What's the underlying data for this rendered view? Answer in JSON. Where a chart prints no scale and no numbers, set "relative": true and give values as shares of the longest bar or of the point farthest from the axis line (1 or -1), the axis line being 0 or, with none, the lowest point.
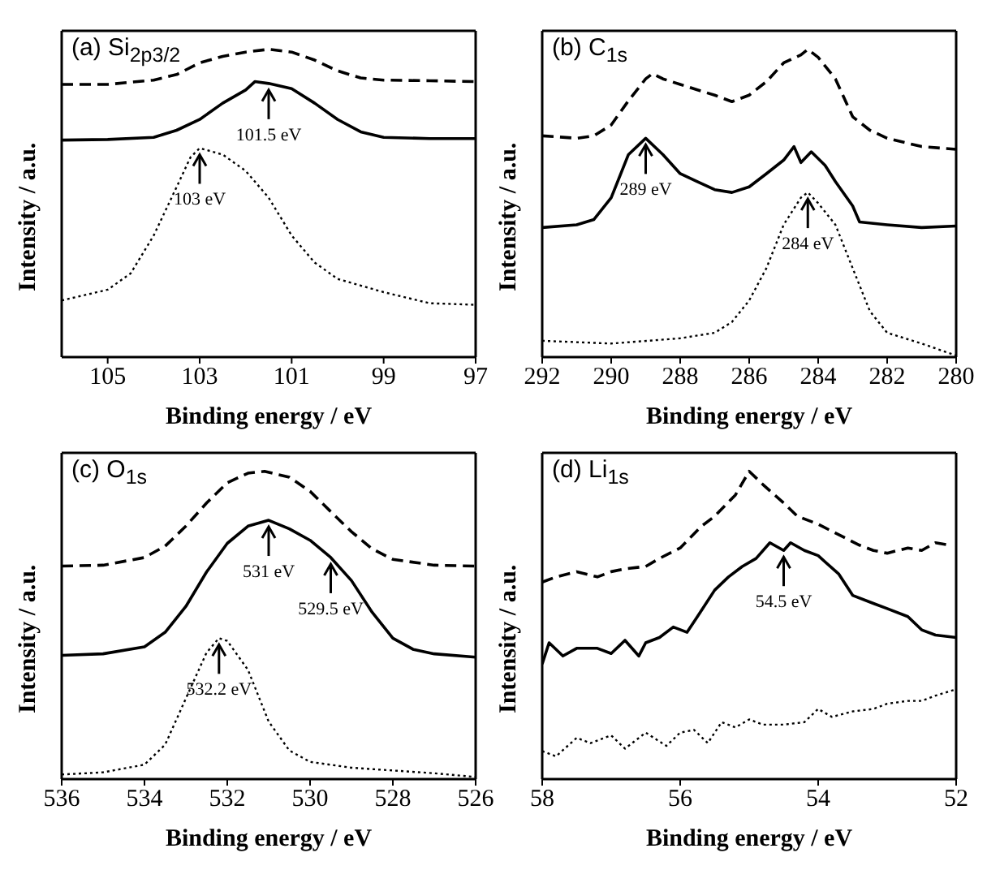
{
  "chart_data": [
    {
      "type": "line",
      "title": "(a) Si$_{2p3/2}$",
      "xlabel": "Binding energy / eV",
      "ylabel": "Intensity / a.u.",
      "relative": true,
      "xlim": [
        106,
        97
      ],
      "xticks": [
        105,
        103,
        101,
        99,
        97
      ],
      "series": [
        {
          "color": "#000000",
          "line_style": "dashed",
          "x": [
            106,
            105,
            104,
            103.5,
            103,
            102.5,
            102,
            101.5,
            101,
            100.5,
            100,
            99.5,
            99,
            98,
            97
          ],
          "values": [
            0.886,
            0.886,
            0.9,
            0.918,
            0.956,
            0.977,
            0.991,
            1,
            0.991,
            0.965,
            0.93,
            0.907,
            0.9,
            0.898,
            0.895
          ]
        },
        {
          "color": "#000000",
          "line_style": "solid",
          "x": [
            106,
            105,
            104,
            103.5,
            103,
            102.5,
            102,
            101.8,
            101.5,
            101,
            100.5,
            100,
            99.5,
            99,
            98,
            97
          ],
          "values": [
            0.705,
            0.707,
            0.714,
            0.737,
            0.772,
            0.825,
            0.868,
            0.895,
            0.889,
            0.872,
            0.825,
            0.772,
            0.732,
            0.714,
            0.71,
            0.71
          ]
        },
        {
          "color": "#000000",
          "line_style": "dotted",
          "x": [
            106,
            105,
            104.5,
            104,
            103.5,
            103.2,
            103,
            102.5,
            102,
            101.5,
            101,
            100.5,
            100,
            99,
            98,
            97
          ],
          "values": [
            0.184,
            0.219,
            0.272,
            0.395,
            0.553,
            0.649,
            0.679,
            0.658,
            0.605,
            0.518,
            0.395,
            0.307,
            0.254,
            0.211,
            0.175,
            0.17
          ]
        }
      ],
      "annotations": [
        {
          "text": "101.5 eV",
          "x": 101.5,
          "y": 0.889
        },
        {
          "text": "103 eV",
          "x": 103,
          "y": 0.679
        }
      ]
    },
    {
      "type": "line",
      "title": "(b) C$_{1s}$",
      "xlabel": "Binding energy / eV",
      "ylabel": "Intensity / a.u.",
      "relative": true,
      "xlim": [
        292,
        280
      ],
      "xticks": [
        292,
        290,
        288,
        286,
        284,
        282,
        280
      ],
      "series": [
        {
          "color": "#000000",
          "line_style": "dashed",
          "x": [
            292,
            291,
            290.5,
            290,
            289.5,
            289,
            288.8,
            288.5,
            288,
            287.5,
            287,
            286.5,
            286,
            285.5,
            285,
            284.5,
            284.3,
            284,
            283.5,
            283,
            282.5,
            282,
            281,
            280
          ],
          "values": [
            0.719,
            0.711,
            0.719,
            0.754,
            0.833,
            0.904,
            0.921,
            0.904,
            0.886,
            0.868,
            0.851,
            0.83,
            0.851,
            0.895,
            0.956,
            0.982,
            1,
            0.974,
            0.904,
            0.781,
            0.737,
            0.711,
            0.684,
            0.675
          ]
        },
        {
          "color": "#000000",
          "line_style": "solid",
          "x": [
            292,
            291,
            290.5,
            290,
            289.5,
            289,
            288.5,
            288,
            287.5,
            287,
            286.5,
            286,
            285.5,
            285,
            284.7,
            284.5,
            284.2,
            283.8,
            283.5,
            283,
            282.8,
            282,
            281,
            280
          ],
          "values": [
            0.421,
            0.43,
            0.447,
            0.518,
            0.658,
            0.711,
            0.658,
            0.596,
            0.57,
            0.544,
            0.535,
            0.553,
            0.596,
            0.64,
            0.684,
            0.632,
            0.667,
            0.623,
            0.57,
            0.491,
            0.439,
            0.43,
            0.421,
            0.426
          ]
        },
        {
          "color": "#000000",
          "line_style": "dotted",
          "x": [
            292,
            290,
            288,
            287,
            286.5,
            286,
            285.5,
            285,
            284.5,
            284.3,
            284,
            283.5,
            283,
            282.5,
            282,
            281,
            280
          ],
          "values": [
            0.053,
            0.044,
            0.061,
            0.079,
            0.114,
            0.184,
            0.289,
            0.43,
            0.518,
            0.535,
            0.5,
            0.43,
            0.289,
            0.149,
            0.079,
            0.044,
            0.005
          ]
        }
      ],
      "annotations": [
        {
          "text": "289 eV",
          "x": 289,
          "y": 0.711
        },
        {
          "text": "284 eV",
          "x": 284.3,
          "y": 0.535
        }
      ]
    },
    {
      "type": "line",
      "title": "(c) O$_{1s}$",
      "xlabel": "Binding energy / eV",
      "ylabel": "Intensity / a.u.",
      "relative": true,
      "xlim": [
        536,
        526
      ],
      "xticks": [
        536,
        534,
        532,
        530,
        528,
        526
      ],
      "series": [
        {
          "color": "#000000",
          "line_style": "dashed",
          "x": [
            536,
            535,
            534,
            533.5,
            533,
            532.5,
            532,
            531.5,
            531.1,
            530.5,
            530,
            529.5,
            529,
            528.5,
            528,
            527,
            526
          ],
          "values": [
            0.692,
            0.695,
            0.72,
            0.757,
            0.822,
            0.897,
            0.963,
            0.994,
            1,
            0.981,
            0.935,
            0.869,
            0.804,
            0.748,
            0.714,
            0.695,
            0.692
          ]
        },
        {
          "color": "#000000",
          "line_style": "solid",
          "x": [
            536,
            535,
            534,
            533.5,
            533,
            532.5,
            532,
            531.5,
            531,
            530.5,
            530,
            529.5,
            529,
            528.5,
            528,
            527.5,
            527,
            526
          ],
          "values": [
            0.402,
            0.407,
            0.43,
            0.477,
            0.561,
            0.673,
            0.766,
            0.822,
            0.841,
            0.813,
            0.776,
            0.72,
            0.645,
            0.542,
            0.458,
            0.421,
            0.407,
            0.396
          ]
        },
        {
          "color": "#000000",
          "line_style": "dotted",
          "x": [
            536,
            535,
            534,
            533.5,
            533,
            532.5,
            532.2,
            532,
            531.5,
            531,
            530.5,
            530,
            529,
            528,
            527,
            526
          ],
          "values": [
            0.015,
            0.022,
            0.047,
            0.112,
            0.262,
            0.411,
            0.458,
            0.449,
            0.355,
            0.187,
            0.093,
            0.056,
            0.037,
            0.028,
            0.019,
            0.007
          ]
        }
      ],
      "annotations": [
        {
          "text": "531 eV",
          "x": 531,
          "y": 0.841
        },
        {
          "text": "529.5 eV",
          "x": 529.5,
          "y": 0.72
        },
        {
          "text": "532.2 eV",
          "x": 532.2,
          "y": 0.458
        }
      ]
    },
    {
      "type": "line",
      "title": "(d) Li$_{1s}$",
      "xlabel": "Binding energy / eV",
      "ylabel": "Intensity / a.u.",
      "relative": true,
      "xlim": [
        58,
        52
      ],
      "xticks": [
        58,
        56,
        54,
        52
      ],
      "series": [
        {
          "color": "#000000",
          "line_style": "dashed",
          "x": [
            58,
            57.8,
            57.5,
            57.2,
            57,
            56.8,
            56.5,
            56.3,
            56,
            55.7,
            55.5,
            55.2,
            55,
            54.8,
            54.5,
            54.3,
            54,
            53.7,
            53.4,
            53.2,
            53,
            52.7,
            52.5,
            52.3,
            52.1
          ],
          "values": [
            0.64,
            0.657,
            0.674,
            0.657,
            0.674,
            0.683,
            0.691,
            0.717,
            0.751,
            0.82,
            0.854,
            0.923,
            1,
            0.957,
            0.897,
            0.854,
            0.828,
            0.794,
            0.76,
            0.743,
            0.734,
            0.751,
            0.743,
            0.768,
            0.76
          ]
        },
        {
          "color": "#000000",
          "line_style": "solid",
          "x": [
            58,
            57.9,
            57.7,
            57.5,
            57.2,
            57,
            56.8,
            56.6,
            56.5,
            56.3,
            56.1,
            55.9,
            55.7,
            55.5,
            55.3,
            55.1,
            54.9,
            54.7,
            54.5,
            54.4,
            54.2,
            54,
            53.7,
            53.5,
            53.2,
            53,
            52.7,
            52.5,
            52.3,
            52
          ],
          "values": [
            0.374,
            0.443,
            0.4,
            0.425,
            0.425,
            0.408,
            0.451,
            0.4,
            0.443,
            0.46,
            0.494,
            0.477,
            0.545,
            0.614,
            0.657,
            0.691,
            0.717,
            0.768,
            0.743,
            0.768,
            0.743,
            0.726,
            0.666,
            0.597,
            0.571,
            0.554,
            0.528,
            0.485,
            0.468,
            0.46
          ]
        },
        {
          "color": "#000000",
          "line_style": "dotted",
          "x": [
            58,
            57.8,
            57.5,
            57.3,
            57,
            56.8,
            56.5,
            56.2,
            56,
            55.8,
            55.6,
            55.4,
            55.2,
            55,
            54.8,
            54.5,
            54.2,
            54,
            53.8,
            53.5,
            53.2,
            53,
            52.7,
            52.5,
            52.3,
            52
          ],
          "values": [
            0.091,
            0.074,
            0.134,
            0.117,
            0.142,
            0.099,
            0.151,
            0.108,
            0.151,
            0.16,
            0.117,
            0.185,
            0.168,
            0.194,
            0.177,
            0.177,
            0.185,
            0.228,
            0.202,
            0.22,
            0.228,
            0.245,
            0.254,
            0.254,
            0.271,
            0.292
          ]
        }
      ],
      "annotations": [
        {
          "text": "54.5 eV",
          "x": 54.5,
          "y": 0.743
        }
      ]
    }
  ]
}
